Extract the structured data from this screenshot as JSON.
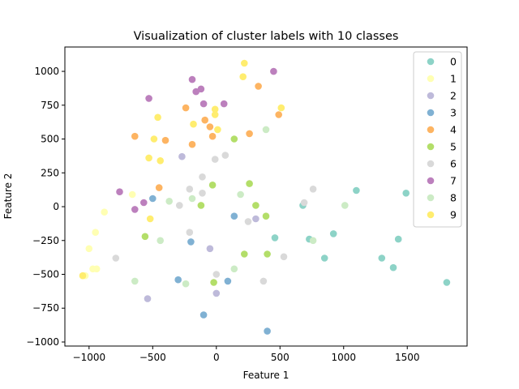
{
  "chart_data": {
    "type": "scatter",
    "title": "Visualization of cluster labels with 10 classes",
    "xlabel": "Feature 1",
    "ylabel": "Feature 2",
    "xlim": [
      -1190,
      1970
    ],
    "ylim": [
      -1030,
      1180
    ],
    "xticks": [
      -1000,
      -500,
      0,
      500,
      1000,
      1500
    ],
    "yticks": [
      -1000,
      -750,
      -500,
      -250,
      0,
      250,
      500,
      750,
      1000
    ],
    "grid": false,
    "legend": "top-right",
    "series": [
      {
        "name": "0",
        "color": "#8dd3c7",
        "points": [
          [
            1810,
            -560
          ],
          [
            1490,
            100
          ],
          [
            1430,
            -240
          ],
          [
            1390,
            -450
          ],
          [
            1300,
            -380
          ],
          [
            1100,
            120
          ],
          [
            920,
            -200
          ],
          [
            850,
            -380
          ],
          [
            730,
            -240
          ],
          [
            680,
            10
          ],
          [
            460,
            -230
          ]
        ]
      },
      {
        "name": "1",
        "color": "#ffffb3",
        "points": [
          [
            -1030,
            -510
          ],
          [
            -1000,
            -310
          ],
          [
            -970,
            -460
          ],
          [
            -940,
            -460
          ],
          [
            -950,
            -190
          ],
          [
            -880,
            -40
          ],
          [
            -660,
            90
          ]
        ]
      },
      {
        "name": "2",
        "color": "#bebada",
        "points": [
          [
            -540,
            -680
          ],
          [
            -270,
            370
          ],
          [
            -50,
            -310
          ],
          [
            0,
            -640
          ],
          [
            310,
            -90
          ]
        ]
      },
      {
        "name": "3",
        "color": "#80b1d3",
        "points": [
          [
            -500,
            60
          ],
          [
            -300,
            -540
          ],
          [
            -200,
            -260
          ],
          [
            -100,
            -800
          ],
          [
            90,
            -550
          ],
          [
            140,
            -70
          ],
          [
            400,
            -920
          ]
        ]
      },
      {
        "name": "4",
        "color": "#fdb462",
        "points": [
          [
            -640,
            520
          ],
          [
            -450,
            140
          ],
          [
            -400,
            490
          ],
          [
            -240,
            730
          ],
          [
            -190,
            460
          ],
          [
            -90,
            640
          ],
          [
            -50,
            590
          ],
          [
            -30,
            520
          ],
          [
            260,
            540
          ],
          [
            330,
            890
          ],
          [
            490,
            680
          ]
        ]
      },
      {
        "name": "5",
        "color": "#b3de69",
        "points": [
          [
            -560,
            -220
          ],
          [
            -120,
            10
          ],
          [
            -30,
            160
          ],
          [
            -20,
            -560
          ],
          [
            140,
            500
          ],
          [
            260,
            170
          ],
          [
            220,
            -350
          ],
          [
            310,
            10
          ],
          [
            390,
            -70
          ],
          [
            400,
            -350
          ]
        ]
      },
      {
        "name": "6",
        "color": "#d9d9d9",
        "points": [
          [
            -790,
            -380
          ],
          [
            -290,
            10
          ],
          [
            -210,
            -190
          ],
          [
            -210,
            130
          ],
          [
            -110,
            220
          ],
          [
            -110,
            100
          ],
          [
            -10,
            350
          ],
          [
            0,
            -500
          ],
          [
            70,
            380
          ],
          [
            250,
            -110
          ],
          [
            370,
            -550
          ],
          [
            530,
            -370
          ],
          [
            690,
            30
          ],
          [
            760,
            130
          ]
        ]
      },
      {
        "name": "7",
        "color": "#bc80bd",
        "points": [
          [
            -760,
            110
          ],
          [
            -640,
            -20
          ],
          [
            -570,
            30
          ],
          [
            -530,
            800
          ],
          [
            -190,
            940
          ],
          [
            -160,
            850
          ],
          [
            -120,
            870
          ],
          [
            -100,
            760
          ],
          [
            60,
            760
          ],
          [
            450,
            1000
          ]
        ]
      },
      {
        "name": "8",
        "color": "#ccebc5",
        "points": [
          [
            -640,
            -550
          ],
          [
            -440,
            -250
          ],
          [
            -370,
            40
          ],
          [
            -240,
            -570
          ],
          [
            -190,
            60
          ],
          [
            140,
            -460
          ],
          [
            190,
            90
          ],
          [
            390,
            570
          ],
          [
            760,
            -250
          ],
          [
            1010,
            10
          ]
        ]
      },
      {
        "name": "9",
        "color": "#ffed6f",
        "points": [
          [
            -1050,
            -510
          ],
          [
            -530,
            360
          ],
          [
            -520,
            -90
          ],
          [
            -490,
            500
          ],
          [
            -460,
            660
          ],
          [
            -440,
            340
          ],
          [
            -180,
            610
          ],
          [
            -10,
            720
          ],
          [
            -10,
            680
          ],
          [
            10,
            570
          ],
          [
            210,
            960
          ],
          [
            220,
            1060
          ],
          [
            510,
            730
          ]
        ]
      }
    ]
  }
}
